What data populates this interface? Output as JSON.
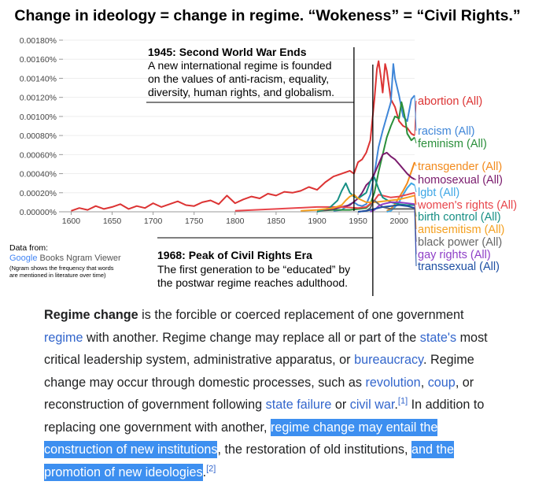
{
  "headline": "Change in ideology = change in regime. “Wokeness” = “Civil Rights.”",
  "chart_data": {
    "type": "line",
    "ylim": [
      0,
      0.0018
    ],
    "xlim": [
      1590,
      2019
    ],
    "y_ticks": [
      0,
      0.0002,
      0.0004,
      0.0006,
      0.0008,
      0.001,
      0.0012,
      0.0014,
      0.0016,
      0.0018
    ],
    "y_tick_labels": [
      "0.00000%",
      "0.00020%",
      "0.00040%",
      "0.00060%",
      "0.00080%",
      "0.00100%",
      "0.00120%",
      "0.00140%",
      "0.00160%",
      "0.00180%"
    ],
    "x_ticks": [
      1600,
      1650,
      1700,
      1750,
      1800,
      1850,
      1900,
      1950,
      2000
    ],
    "grid": true,
    "series": [
      {
        "name": "abortion (All)",
        "color": "#dc3333",
        "x": [
          1600,
          1610,
          1620,
          1630,
          1640,
          1650,
          1660,
          1670,
          1680,
          1690,
          1700,
          1710,
          1720,
          1730,
          1740,
          1750,
          1760,
          1770,
          1780,
          1790,
          1800,
          1810,
          1820,
          1830,
          1840,
          1850,
          1860,
          1870,
          1880,
          1890,
          1900,
          1910,
          1920,
          1930,
          1940,
          1945,
          1950,
          1955,
          1960,
          1965,
          1970,
          1973,
          1975,
          1978,
          1980,
          1983,
          1985,
          1988,
          1990,
          1995,
          2000,
          2005,
          2010,
          2015,
          2019
        ],
        "y": [
          1e-05,
          4e-05,
          2e-05,
          6e-05,
          3e-05,
          5e-05,
          8e-05,
          3e-05,
          6e-05,
          4e-05,
          9e-05,
          5e-05,
          8e-05,
          0.00011,
          7e-05,
          6e-05,
          0.0001,
          0.00012,
          8e-05,
          0.00017,
          9e-05,
          0.00013,
          0.00016,
          0.00014,
          0.00019,
          0.00017,
          0.00021,
          0.0002,
          0.00022,
          0.00026,
          0.00023,
          0.00031,
          0.00037,
          0.0004,
          0.00043,
          0.0004,
          0.00052,
          0.00055,
          0.00062,
          0.00075,
          0.00118,
          0.0015,
          0.00158,
          0.0014,
          0.00125,
          0.00155,
          0.00148,
          0.0013,
          0.00118,
          0.0011,
          0.00095,
          0.0009,
          0.00088,
          0.00082,
          0.0008
        ]
      },
      {
        "name": "racism (All)",
        "color": "#3f86d8",
        "x": [
          1920,
          1930,
          1940,
          1945,
          1950,
          1955,
          1960,
          1965,
          1970,
          1975,
          1980,
          1985,
          1990,
          1993,
          1995,
          2000,
          2005,
          2010,
          2015,
          2019
        ],
        "y": [
          1e-05,
          2e-05,
          8e-05,
          0.0001,
          7e-05,
          6e-05,
          8e-05,
          0.00018,
          0.0004,
          0.00068,
          0.00085,
          0.001,
          0.00115,
          0.00155,
          0.0014,
          0.00122,
          0.001,
          0.00095,
          0.00118,
          0.00122
        ]
      },
      {
        "name": "feminism (All)",
        "color": "#2a8f3a",
        "x": [
          1900,
          1920,
          1940,
          1960,
          1965,
          1970,
          1975,
          1980,
          1985,
          1990,
          1995,
          2000,
          2003,
          2005,
          2008,
          2010,
          2015,
          2019
        ],
        "y": [
          1e-05,
          2e-05,
          2e-05,
          4e-05,
          8e-05,
          0.0002,
          0.00042,
          0.0006,
          0.00078,
          0.0009,
          0.001,
          0.00098,
          0.00115,
          0.00108,
          0.00095,
          0.00082,
          0.00075,
          0.00078
        ]
      },
      {
        "name": "transgender (All)",
        "color": "#f28a1c",
        "x": [
          1985,
          1990,
          1995,
          2000,
          2005,
          2010,
          2015,
          2019
        ],
        "y": [
          1e-05,
          3e-05,
          8e-05,
          0.00015,
          0.00022,
          0.0003,
          0.00042,
          0.00052
        ]
      },
      {
        "name": "homosexual (All)",
        "color": "#7a1b6d",
        "x": [
          1900,
          1910,
          1920,
          1930,
          1940,
          1950,
          1955,
          1960,
          1965,
          1970,
          1975,
          1980,
          1985,
          1990,
          1995,
          2000,
          2005,
          2010,
          2015,
          2019
        ],
        "y": [
          1e-05,
          2e-05,
          3e-05,
          5e-05,
          7e-05,
          0.00014,
          0.0002,
          0.00028,
          0.00032,
          0.0004,
          0.0005,
          0.0006,
          0.00062,
          0.00058,
          0.00055,
          0.0005,
          0.00045,
          0.0004,
          0.00036,
          0.00034
        ]
      },
      {
        "name": "lgbt (All)",
        "color": "#3fa7e6",
        "x": [
          1985,
          1990,
          1995,
          2000,
          2005,
          2010,
          2015,
          2019
        ],
        "y": [
          0.0,
          1e-05,
          5e-05,
          0.0001,
          0.00018,
          0.00025,
          0.0003,
          0.00028
        ]
      },
      {
        "name": "women's rights (All)",
        "color": "#e8454b",
        "x": [
          1800,
          1850,
          1900,
          1930,
          1950,
          1960,
          1970,
          1975,
          1980,
          1990,
          2000,
          2010,
          2019
        ],
        "y": [
          1e-05,
          3e-05,
          5e-05,
          5e-05,
          4e-05,
          5e-05,
          0.00012,
          0.00018,
          0.00017,
          0.00015,
          0.00016,
          0.00018,
          0.0002
        ]
      },
      {
        "name": "birth control (All)",
        "color": "#168f84",
        "x": [
          1900,
          1915,
          1925,
          1930,
          1935,
          1940,
          1945,
          1950,
          1960,
          1965,
          1970,
          1975,
          1980,
          1990,
          2000,
          2010,
          2019
        ],
        "y": [
          0.0,
          4e-05,
          0.00012,
          0.00022,
          0.0003,
          0.0002,
          0.00016,
          0.00014,
          0.0002,
          0.00032,
          0.00036,
          0.00024,
          0.00015,
          0.0001,
          8e-05,
          7e-05,
          7e-05
        ]
      },
      {
        "name": "antisemitism (All)",
        "color": "#f4a020",
        "x": [
          1880,
          1900,
          1920,
          1930,
          1935,
          1940,
          1945,
          1950,
          1960,
          1970,
          1980,
          1990,
          2000,
          2010,
          2019
        ],
        "y": [
          1e-05,
          2e-05,
          4e-05,
          7e-05,
          0.00012,
          0.00016,
          0.00018,
          0.00014,
          0.0001,
          0.0001,
          0.00011,
          0.00012,
          0.00013,
          0.00015,
          0.00017
        ]
      },
      {
        "name": "black power (All)",
        "color": "#666666",
        "x": [
          1950,
          1960,
          1965,
          1968,
          1970,
          1975,
          1980,
          1990,
          2000,
          2010,
          2019
        ],
        "y": [
          0.0,
          1e-05,
          4e-05,
          0.0001,
          0.00012,
          8e-05,
          5e-05,
          3e-05,
          3e-05,
          3e-05,
          3e-05
        ]
      },
      {
        "name": "gay rights (All)",
        "color": "#8e3fc7",
        "x": [
          1965,
          1970,
          1975,
          1980,
          1990,
          2000,
          2010,
          2019
        ],
        "y": [
          0.0,
          2e-05,
          6e-05,
          8e-05,
          0.0001,
          0.0001,
          9e-05,
          8e-05
        ]
      },
      {
        "name": "transsexual (All)",
        "color": "#1e4fa3",
        "x": [
          1950,
          1960,
          1970,
          1980,
          1990,
          2000,
          2010,
          2019
        ],
        "y": [
          0.0,
          1e-05,
          3e-05,
          5e-05,
          6e-05,
          7e-05,
          6e-05,
          4e-05
        ]
      }
    ],
    "annotations": [
      {
        "year": 1945,
        "title": "1945: Second World War Ends",
        "text": [
          "A new international regime is founded",
          "on the values of anti-racism, equality,",
          "diversity, human rights, and globalism."
        ]
      },
      {
        "year": 1968,
        "title": "1968: Peak of Civil Rights Era",
        "text": [
          "The first generation to be “educated” by",
          "the postwar regime reaches adulthood."
        ]
      }
    ]
  },
  "credit": {
    "label": "Data from:",
    "google": "Google",
    "service": "Books Ngram Viewer",
    "note": "(Ngram shows the frequency that words are mentioned in literature over time)"
  },
  "article": {
    "term": "Regime change",
    "t1": " is the forcible or coerced replacement of one government ",
    "link_regime": "regime",
    "t2": " with another. Regime change may replace all or part of the ",
    "link_states": "state's",
    "t3": " most critical leadership system, administrative apparatus, or ",
    "link_bureaucracy": "bureaucracy",
    "t4": ". Regime change may occur through domestic processes, such as ",
    "link_revolution": "revolution",
    "t5": ", ",
    "link_coup": "coup",
    "t6": ", or reconstruction of government following ",
    "link_state_failure": "state failure",
    "t7": " or ",
    "link_civil_war": "civil war",
    "t8": ".",
    "ref1": "[1]",
    "t9": " In addition to replacing one government with another, ",
    "highlight1": "regime change may entail the construction of new institutions",
    "t10": ", the restoration of old institutions, ",
    "highlight2": "and the promotion of new ideologies",
    "t11": ".",
    "ref2": "[2]"
  }
}
